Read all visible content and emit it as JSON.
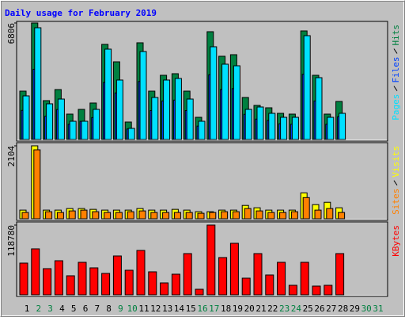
{
  "chart_data": [
    {
      "type": "bar",
      "title": "Daily usage for February 2019",
      "ylim": [
        0,
        6806
      ],
      "yticks": [
        6806
      ],
      "series": [
        {
          "name": "Hits",
          "color": "#008040",
          "values": [
            2824,
            6806,
            2269,
            2917,
            1482,
            1759,
            2130,
            5556,
            4537,
            1019,
            5649,
            2824,
            3750,
            3843,
            2824,
            1296,
            6297,
            4862,
            4954,
            2454,
            1991,
            1852,
            1528,
            1482,
            6343,
            3750,
            1482,
            2222,
            null,
            null,
            null
          ]
        },
        {
          "name": "Files",
          "color": "#0040FF",
          "values": [
            1700,
            4100,
            1360,
            1750,
            890,
            1060,
            1280,
            3330,
            2720,
            610,
            3390,
            1690,
            2250,
            2300,
            1690,
            780,
            3780,
            2920,
            2970,
            1470,
            1190,
            1110,
            920,
            890,
            3810,
            2250,
            890,
            1330,
            null,
            null,
            null
          ]
        },
        {
          "name": "Pages",
          "color": "#00E0FF",
          "values": [
            2547,
            6528,
            2084,
            2361,
            1065,
            1065,
            1759,
            5278,
            3473,
            648,
            5139,
            2454,
            3473,
            3565,
            2361,
            1065,
            5417,
            4399,
            4306,
            1759,
            1898,
            1528,
            1296,
            1296,
            6065,
            3611,
            1296,
            1528,
            null,
            null,
            null
          ]
        }
      ]
    },
    {
      "type": "bar",
      "ylim": [
        0,
        2104
      ],
      "yticks": [
        2104
      ],
      "series": [
        {
          "name": "Visits",
          "color": "#FFFF00",
          "values": [
            249,
            2104,
            249,
            249,
            294,
            294,
            271,
            249,
            249,
            249,
            294,
            249,
            249,
            271,
            249,
            203,
            203,
            249,
            249,
            384,
            316,
            249,
            249,
            249,
            746,
            407,
            475,
            316,
            null,
            null,
            null
          ]
        },
        {
          "name": "Sites",
          "color": "#FF8000",
          "values": [
            181,
            1989,
            203,
            181,
            226,
            249,
            203,
            181,
            181,
            203,
            226,
            181,
            181,
            181,
            181,
            158,
            181,
            203,
            203,
            294,
            226,
            181,
            181,
            203,
            610,
            249,
            294,
            181,
            null,
            null,
            null
          ]
        }
      ]
    },
    {
      "type": "bar",
      "ylim": [
        0,
        118780
      ],
      "yticks": [
        118780
      ],
      "categories": [
        "1",
        "2",
        "3",
        "4",
        "5",
        "6",
        "7",
        "8",
        "9",
        "10",
        "11",
        "12",
        "13",
        "14",
        "15",
        "16",
        "17",
        "18",
        "19",
        "20",
        "21",
        "22",
        "23",
        "24",
        "25",
        "26",
        "27",
        "28",
        "29",
        "30",
        "31"
      ],
      "category_colors": [
        "#000000",
        "#008040",
        "#008040",
        "#000000",
        "#000000",
        "#000000",
        "#000000",
        "#000000",
        "#008040",
        "#008040",
        "#000000",
        "#000000",
        "#000000",
        "#000000",
        "#000000",
        "#008040",
        "#008040",
        "#000000",
        "#000000",
        "#000000",
        "#000000",
        "#000000",
        "#008040",
        "#008040",
        "#000000",
        "#000000",
        "#000000",
        "#000000",
        "#000000",
        "#008040",
        "#008040"
      ],
      "series": [
        {
          "name": "KBytes",
          "color": "#FF0000",
          "values": [
            54000,
            78300,
            44550,
            58050,
            32400,
            55350,
            45900,
            36450,
            66150,
            41850,
            75600,
            39150,
            20250,
            35100,
            70200,
            9450,
            118780,
            63450,
            87750,
            28350,
            70200,
            33750,
            55350,
            16200,
            55350,
            14850,
            16200,
            70200,
            null,
            null,
            null
          ]
        }
      ]
    }
  ]
}
